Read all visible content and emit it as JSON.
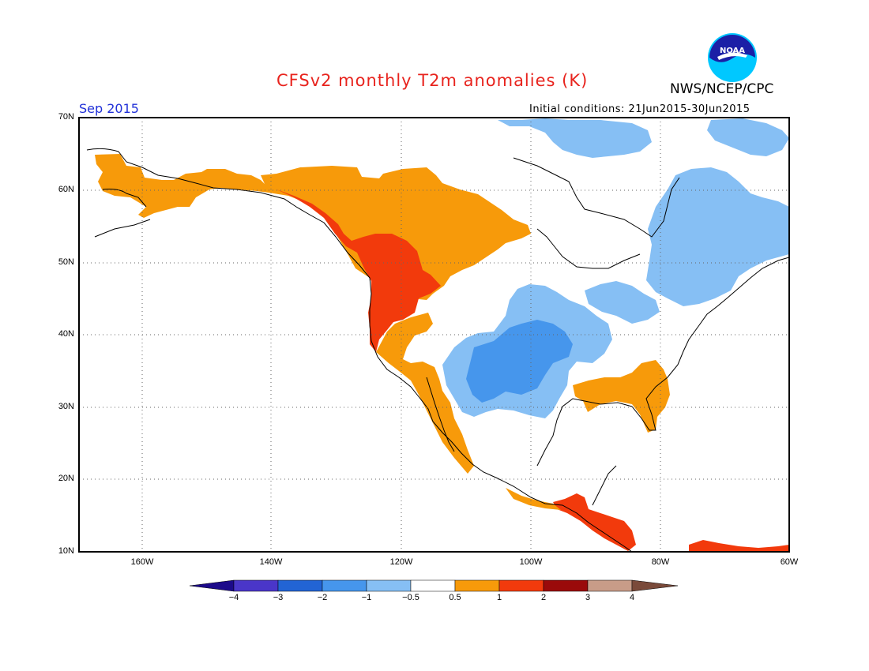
{
  "header": {
    "title": "CFSv2 monthly T2m anomalies (K)",
    "agency": "NWS/NCEP/CPC",
    "month": "Sep 2015",
    "initial_conditions": "Initial conditions: 21Jun2015-30Jun2015",
    "logo_text": "NOAA"
  },
  "map": {
    "projection": "lat-lon",
    "lon_range": [
      -172,
      -60
    ],
    "lat_range": [
      10,
      70
    ],
    "lat_labels": [
      "70N",
      "60N",
      "50N",
      "40N",
      "30N",
      "20N",
      "10N"
    ],
    "lon_labels": [
      "160W",
      "140W",
      "120W",
      "100W",
      "80W",
      "60W"
    ],
    "grid": "dotted"
  },
  "colorbar": {
    "tick_labels": [
      "−4",
      "−3",
      "−2",
      "−1",
      "−0.5",
      "0.5",
      "1",
      "2",
      "3",
      "4"
    ],
    "colors": [
      "#1c0a8a",
      "#4a36c9",
      "#2264d4",
      "#4696ec",
      "#86bff4",
      "#ffffff",
      "#f79a0a",
      "#f23a0c",
      "#9a0a0a",
      "#c89c88",
      "#7a4a3a"
    ]
  },
  "anomaly_regions": [
    {
      "name": "Alaska",
      "class": "0.5 to 1",
      "color": "#f79a0a"
    },
    {
      "name": "Western Canada",
      "class": "0.5 to 1",
      "color": "#f79a0a"
    },
    {
      "name": "Pacific Northwest and California coast",
      "class": "1 to 2",
      "color": "#f23a0c"
    },
    {
      "name": "Southeastern US",
      "class": "0.5 to 1",
      "color": "#f79a0a"
    },
    {
      "name": "Central Plains and Southwest",
      "class": "-1 to -0.5",
      "color": "#86bff4"
    },
    {
      "name": "Eastern Canada",
      "class": "-1 to -0.5",
      "color": "#86bff4"
    },
    {
      "name": "Central America",
      "class": "1 to 2",
      "color": "#f23a0c"
    }
  ]
}
